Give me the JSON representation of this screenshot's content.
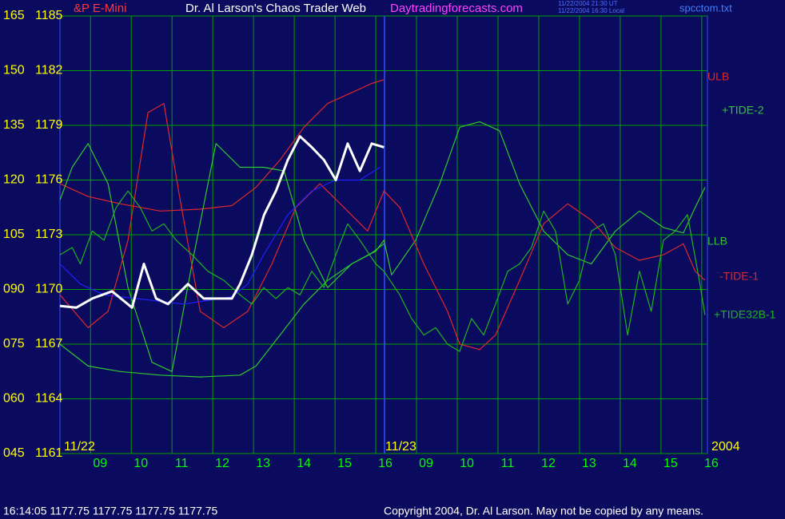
{
  "chart_data": {
    "type": "line",
    "title": "Dr. Al Larson's Chaos Trader Web",
    "instrument": "&P E-Mini",
    "website": "Daytradingforecasts.com",
    "timestamps": [
      "11/22/2004 21:30 UT",
      "11/22/2004 16:30 Local"
    ],
    "file": "spcctom.txt",
    "status": "16:14:05  1177.75 1177.75 1177.75 1177.75",
    "copyright": "Copyright 2004, Dr. Al Larson. May not be copied by any means.",
    "annotations": [
      "11/22",
      "11/23",
      "2004"
    ],
    "grid": true,
    "background": "#0a0a5e",
    "grid_color": "#00a000",
    "xlim": [
      0.25,
      16.14
    ],
    "xticks": [
      {
        "value": 1,
        "label": "09"
      },
      {
        "value": 2,
        "label": "10"
      },
      {
        "value": 3,
        "label": "11"
      },
      {
        "value": 4,
        "label": "12"
      },
      {
        "value": 5,
        "label": "13"
      },
      {
        "value": 6,
        "label": "14"
      },
      {
        "value": 7,
        "label": "15"
      },
      {
        "value": 8,
        "label": "16"
      },
      {
        "value": 9,
        "label": "09"
      },
      {
        "value": 10,
        "label": "10"
      },
      {
        "value": 11,
        "label": "11"
      },
      {
        "value": 12,
        "label": "12"
      },
      {
        "value": 13,
        "label": "13"
      },
      {
        "value": 14,
        "label": "14"
      },
      {
        "value": 15,
        "label": "15"
      },
      {
        "value": 16,
        "label": "16"
      }
    ],
    "ylim": [
      1161,
      1185
    ],
    "yticks": [
      1161,
      1164,
      1167,
      1170,
      1173,
      1176,
      1179,
      1182,
      1185
    ],
    "y2lim": [
      45,
      165
    ],
    "y2ticks": [
      {
        "value": 45,
        "label": "045"
      },
      {
        "value": 60,
        "label": "060"
      },
      {
        "value": 75,
        "label": "075"
      },
      {
        "value": 90,
        "label": "090"
      },
      105,
      120,
      135,
      150,
      165
    ],
    "series": [
      {
        "name": "ULB",
        "color": "#e02828",
        "x": [
          0.25,
          0.94,
          1.73,
          2.71,
          3.69,
          4.47,
          5.06,
          5.65,
          6.24,
          6.82,
          7.41,
          7.9,
          8.2
        ],
        "values": [
          1175.8,
          1175.1,
          1174.7,
          1174.3,
          1174.4,
          1174.6,
          1175.6,
          1177.1,
          1178.9,
          1180.2,
          1180.8,
          1181.3,
          1181.5
        ]
      },
      {
        "name": "+TIDE-2",
        "color": "#30c830",
        "x": [
          0.25,
          0.55,
          0.94,
          1.43,
          1.92,
          2.51,
          3.0,
          3.49,
          4.08,
          4.67,
          5.25,
          5.75,
          6.24,
          6.82,
          7.41,
          8.0,
          8.2,
          8.39,
          8.98,
          9.57,
          10.06,
          10.55,
          11.04,
          11.53,
          12.12,
          12.71,
          13.29,
          13.88,
          14.47,
          15.06,
          15.55,
          15.84,
          16.08
        ],
        "values": [
          1174.9,
          1176.7,
          1178.0,
          1175.8,
          1170.1,
          1166.0,
          1165.5,
          1171.4,
          1178.0,
          1176.7,
          1176.7,
          1176.5,
          1172.7,
          1170.1,
          1171.4,
          1172.1,
          1172.7,
          1170.8,
          1172.7,
          1175.8,
          1178.9,
          1179.2,
          1178.7,
          1175.8,
          1173.2,
          1171.9,
          1171.4,
          1173.2,
          1174.3,
          1173.4,
          1173.1,
          1174.5,
          1175.6
        ]
      },
      {
        "name": "LLB",
        "color": "#30c830",
        "x": [
          0.25,
          0.94,
          1.73,
          2.71,
          3.69,
          4.67,
          5.06,
          5.65,
          6.24,
          6.82,
          7.41,
          7.9,
          8.2
        ],
        "values": [
          1167.0,
          1165.8,
          1165.5,
          1165.3,
          1165.2,
          1165.3,
          1165.8,
          1167.5,
          1169.2,
          1170.5,
          1171.4,
          1172.0,
          1172.5
        ]
      },
      {
        "name": "-TIDE-1",
        "color": "#e02828",
        "x": [
          0.25,
          0.94,
          1.43,
          1.92,
          2.41,
          2.8,
          3.2,
          3.69,
          4.27,
          4.86,
          5.45,
          6.04,
          6.63,
          7.22,
          7.8,
          8.2,
          8.59,
          9.18,
          9.76,
          10.06,
          10.55,
          10.94,
          11.53,
          12.12,
          12.71,
          13.29,
          13.88,
          14.47,
          15.06,
          15.55,
          15.84,
          16.08
        ],
        "values": [
          1169.7,
          1167.9,
          1168.8,
          1172.7,
          1179.7,
          1180.2,
          1174.9,
          1168.8,
          1167.9,
          1168.8,
          1171.4,
          1174.5,
          1175.8,
          1174.5,
          1173.2,
          1175.4,
          1174.5,
          1171.4,
          1168.8,
          1167.0,
          1166.7,
          1167.5,
          1170.5,
          1173.6,
          1174.7,
          1173.8,
          1172.3,
          1171.6,
          1171.9,
          1172.5,
          1171.0,
          1170.5
        ]
      },
      {
        "name": "+TIDE32B-1",
        "color": "#1fb41f",
        "x": [
          0.25,
          0.55,
          0.75,
          1.04,
          1.33,
          1.63,
          1.92,
          2.22,
          2.51,
          2.8,
          3.1,
          3.49,
          3.88,
          4.27,
          4.67,
          4.96,
          5.25,
          5.55,
          5.84,
          6.14,
          6.43,
          6.73,
          7.02,
          7.31,
          7.61,
          8.0,
          8.2,
          8.59,
          8.88,
          9.18,
          9.47,
          9.76,
          10.06,
          10.35,
          10.65,
          10.94,
          11.24,
          11.53,
          11.82,
          12.12,
          12.41,
          12.71,
          13.0,
          13.29,
          13.59,
          13.88,
          14.18,
          14.47,
          14.76,
          15.06,
          15.35,
          15.65,
          15.94,
          16.08
        ],
        "values": [
          1171.9,
          1172.3,
          1171.4,
          1173.2,
          1172.7,
          1174.5,
          1175.4,
          1174.5,
          1173.2,
          1173.6,
          1172.7,
          1171.9,
          1171.0,
          1170.5,
          1169.7,
          1169.2,
          1170.1,
          1169.5,
          1170.1,
          1169.7,
          1171.0,
          1170.1,
          1171.9,
          1173.6,
          1172.7,
          1171.4,
          1171.0,
          1169.7,
          1168.4,
          1167.5,
          1167.9,
          1167.0,
          1166.6,
          1168.4,
          1167.5,
          1169.2,
          1171.0,
          1171.4,
          1172.3,
          1174.3,
          1173.2,
          1169.2,
          1170.5,
          1173.2,
          1173.6,
          1171.9,
          1167.5,
          1171.0,
          1168.8,
          1172.7,
          1173.2,
          1174.1,
          1170.5,
          1168.6
        ]
      },
      {
        "color": "#2020ff",
        "x": [
          0.25,
          0.75,
          1.33,
          2.12,
          3.29,
          4.47,
          4.86,
          5.25,
          5.84,
          6.43,
          7.02,
          7.61,
          8.1
        ],
        "values": [
          1171.4,
          1170.3,
          1169.7,
          1169.5,
          1169.2,
          1169.6,
          1170.3,
          1171.9,
          1174.1,
          1175.4,
          1176.0,
          1176.0,
          1176.7
        ]
      },
      {
        "color": "#ffffff",
        "x": [
          0.25,
          0.65,
          1.04,
          1.53,
          2.02,
          2.31,
          2.61,
          2.9,
          3.39,
          3.78,
          4.47,
          4.67,
          4.96,
          5.26,
          5.55,
          5.84,
          6.14,
          6.43,
          6.73,
          7.02,
          7.31,
          7.61,
          7.9,
          8.2
        ],
        "values": [
          1169.1,
          1169.0,
          1169.5,
          1169.9,
          1169.0,
          1171.4,
          1169.5,
          1169.2,
          1170.3,
          1169.5,
          1169.5,
          1170.3,
          1171.9,
          1174.1,
          1175.4,
          1177.1,
          1178.4,
          1177.8,
          1177.1,
          1176.0,
          1178.0,
          1176.5,
          1178.0,
          1177.8
        ]
      }
    ]
  }
}
